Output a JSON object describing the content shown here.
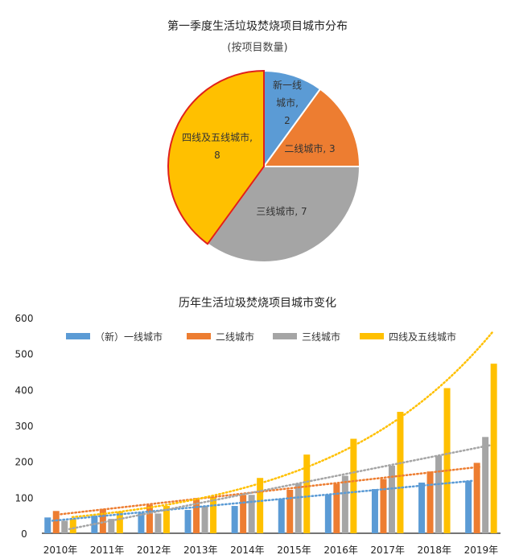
{
  "chart_data": [
    {
      "type": "pie",
      "title": "第一季度生活垃圾焚烧项目城市分布",
      "subtitle": "(按项目数量)",
      "slices": [
        {
          "label": "新一线城市",
          "value": 2,
          "color": "#5B9BD5"
        },
        {
          "label": "二线城市",
          "value": 3,
          "color": "#ED7D31"
        },
        {
          "label": "三线城市",
          "value": 7,
          "color": "#A5A5A5"
        },
        {
          "label": "四线及五线城市",
          "value": 8,
          "color": "#FFC000",
          "highlighted": true,
          "outline_color": "#E0201B"
        }
      ],
      "data_labels": [
        "新一线\n城市,\n2",
        "二线城市, 3",
        "三线城市, 7",
        "四线及五线城市,\n8"
      ]
    },
    {
      "type": "bar",
      "title": "历年生活垃圾焚烧项目城市变化",
      "categories": [
        "2010年",
        "2011年",
        "2012年",
        "2013年",
        "2014年",
        "2015年",
        "2016年",
        "2017年",
        "2018年",
        "2019年"
      ],
      "series": [
        {
          "name": "（新）一线城市",
          "color": "#5B9BD5",
          "values": [
            44,
            49,
            57,
            65,
            76,
            96,
            108,
            123,
            141,
            146
          ],
          "trendline": "linear"
        },
        {
          "name": "二线城市",
          "color": "#ED7D31",
          "values": [
            62,
            68,
            79,
            98,
            107,
            121,
            138,
            151,
            172,
            196
          ],
          "trendline": "linear"
        },
        {
          "name": "三线城市",
          "color": "#A5A5A5",
          "values": [
            35,
            40,
            55,
            76,
            107,
            138,
            160,
            188,
            216,
            268
          ],
          "trendline": "linear"
        },
        {
          "name": "四线及五线城市",
          "color": "#FFC000",
          "values": [
            40,
            60,
            76,
            101,
            154,
            219,
            263,
            338,
            404,
            472
          ],
          "trendline": "exponential"
        }
      ],
      "ylim": [
        0,
        600
      ],
      "yticks": [
        "0",
        "100",
        "200",
        "300",
        "400",
        "500",
        "600"
      ],
      "grid": false,
      "legend": "top"
    }
  ]
}
